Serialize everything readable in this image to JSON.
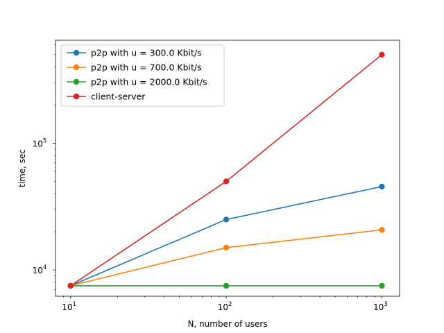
{
  "chart_data": {
    "type": "line",
    "xscale": "log",
    "yscale": "log",
    "xlabel": "N, number of users",
    "ylabel": "time, sec",
    "xlim": [
      8,
      1300
    ],
    "ylim": [
      6200,
      650000
    ],
    "x": [
      10,
      100,
      1000
    ],
    "x_tick_labels": [
      {
        "value": 10,
        "base": "10",
        "exp": "1"
      },
      {
        "value": 100,
        "base": "10",
        "exp": "2"
      },
      {
        "value": 1000,
        "base": "10",
        "exp": "3"
      }
    ],
    "y_tick_labels": [
      {
        "value": 10000,
        "base": "10",
        "exp": "4"
      },
      {
        "value": 100000,
        "base": "10",
        "exp": "5"
      }
    ],
    "grid": false,
    "legend_position": "top-left",
    "series": [
      {
        "name": "p2p with u = 300.0 Kbit/s",
        "color": "#1f77b4",
        "values": [
          7500,
          25000,
          45500
        ]
      },
      {
        "name": "p2p with u = 700.0 Kbit/s",
        "color": "#ff7f0e",
        "values": [
          7500,
          15000,
          20700
        ]
      },
      {
        "name": "p2p with u = 2000.0 Kbit/s",
        "color": "#2ca02c",
        "values": [
          7500,
          7500,
          7500
        ]
      },
      {
        "name": "client-server",
        "color": "#d62728",
        "values": [
          7500,
          50000,
          500000
        ]
      }
    ]
  }
}
